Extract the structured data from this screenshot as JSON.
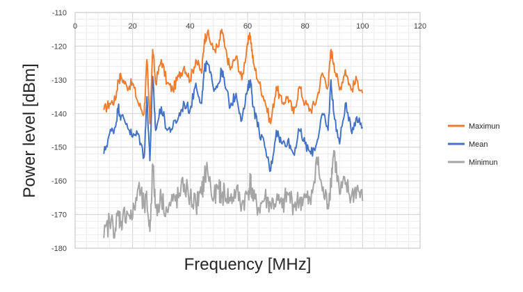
{
  "chart_data": {
    "type": "line",
    "title": "",
    "xlabel": "Frequency [MHz]",
    "ylabel": "Power level [dBm]",
    "xlim": [
      0,
      120
    ],
    "ylim": [
      -180,
      -110
    ],
    "x_ticks": [
      0,
      20,
      40,
      60,
      80,
      100,
      120
    ],
    "y_ticks": [
      -110,
      -120,
      -130,
      -140,
      -150,
      -160,
      -170,
      -180
    ],
    "x_tick_labels": [
      "0",
      "20",
      "40",
      "60",
      "80",
      "100",
      "120"
    ],
    "y_tick_labels": [
      "-110",
      "-120",
      "-130",
      "-140",
      "-150",
      "-160",
      "-170",
      "-180"
    ],
    "x_axis_position": "top",
    "grid": true,
    "legend_position": "right",
    "series": [
      {
        "name": "Maximun",
        "color": "#ED7D31",
        "x": [
          10,
          12,
          14,
          15,
          16,
          18,
          20,
          22,
          24,
          25,
          26,
          27,
          28,
          30,
          32,
          34,
          36,
          38,
          40,
          42,
          44,
          45,
          46,
          48,
          50,
          51,
          52,
          54,
          56,
          58,
          60,
          61,
          62,
          64,
          66,
          68,
          70,
          72,
          74,
          76,
          78,
          80,
          82,
          84,
          86,
          88,
          89,
          90,
          92,
          94,
          96,
          98,
          100
        ],
        "values": [
          -139,
          -137,
          -136,
          -130,
          -129,
          -132,
          -131,
          -137,
          -140,
          -124,
          -143,
          -121,
          -131,
          -124,
          -131,
          -133,
          -129,
          -126,
          -130,
          -124,
          -128,
          -118,
          -116,
          -121,
          -120,
          -115,
          -120,
          -127,
          -123,
          -130,
          -119,
          -117,
          -125,
          -131,
          -136,
          -143,
          -132,
          -137,
          -135,
          -140,
          -132,
          -137,
          -139,
          -136,
          -128,
          -132,
          -121,
          -125,
          -133,
          -127,
          -133,
          -130,
          -134
        ]
      },
      {
        "name": "Mean",
        "color": "#4472C4",
        "x": [
          10,
          12,
          14,
          15,
          16,
          18,
          20,
          22,
          24,
          25,
          26,
          27,
          28,
          30,
          32,
          34,
          36,
          38,
          40,
          42,
          44,
          45,
          46,
          48,
          50,
          51,
          52,
          54,
          56,
          58,
          60,
          61,
          62,
          64,
          66,
          68,
          70,
          72,
          74,
          76,
          78,
          80,
          82,
          84,
          86,
          88,
          89,
          90,
          92,
          94,
          96,
          98,
          100
        ],
        "values": [
          -152,
          -146,
          -144,
          -138,
          -141,
          -143,
          -147,
          -146,
          -153,
          -135,
          -154,
          -129,
          -145,
          -138,
          -145,
          -144,
          -141,
          -137,
          -139,
          -131,
          -137,
          -127,
          -125,
          -132,
          -131,
          -127,
          -131,
          -138,
          -134,
          -142,
          -133,
          -130,
          -138,
          -145,
          -150,
          -157,
          -145,
          -149,
          -148,
          -152,
          -145,
          -149,
          -152,
          -149,
          -140,
          -145,
          -130,
          -140,
          -149,
          -137,
          -145,
          -141,
          -144
        ]
      },
      {
        "name": "Minimun",
        "color": "#A5A5A5",
        "x": [
          10,
          12,
          14,
          15,
          16,
          18,
          20,
          22,
          24,
          25,
          26,
          27,
          28,
          30,
          32,
          34,
          36,
          38,
          40,
          42,
          44,
          45,
          46,
          48,
          50,
          51,
          52,
          54,
          56,
          58,
          60,
          61,
          62,
          64,
          66,
          68,
          70,
          72,
          74,
          76,
          78,
          80,
          82,
          84,
          86,
          88,
          89,
          90,
          92,
          94,
          96,
          98,
          100
        ],
        "values": [
          -177,
          -172,
          -174,
          -170,
          -172,
          -169,
          -171,
          -162,
          -168,
          -166,
          -175,
          -155,
          -168,
          -165,
          -169,
          -166,
          -165,
          -161,
          -165,
          -167,
          -164,
          -159,
          -156,
          -166,
          -162,
          -165,
          -163,
          -166,
          -163,
          -167,
          -164,
          -160,
          -166,
          -168,
          -165,
          -167,
          -166,
          -168,
          -164,
          -167,
          -166,
          -165,
          -167,
          -153,
          -163,
          -167,
          -160,
          -151,
          -164,
          -161,
          -165,
          -162,
          -166
        ]
      }
    ]
  }
}
